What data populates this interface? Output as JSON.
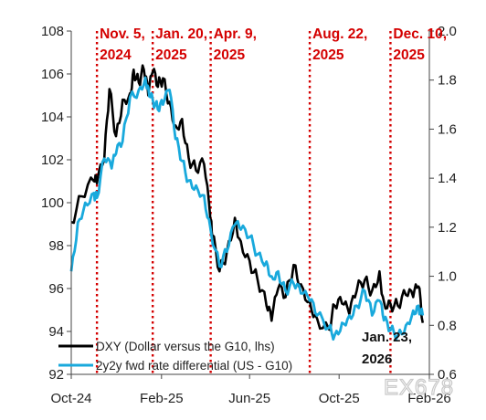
{
  "chart_data": {
    "type": "line",
    "title": "",
    "xlabel": "",
    "ylabel": "",
    "x_ticks": [
      "Oct-24",
      "Feb-25",
      "Jun-25",
      "Oct-25",
      "Feb-26"
    ],
    "x_range": [
      "2024-10-01",
      "2026-02-01"
    ],
    "y_left": {
      "range": [
        92,
        108
      ],
      "ticks": [
        "92",
        "94",
        "96",
        "98",
        "100",
        "102",
        "104",
        "106",
        "108"
      ]
    },
    "y_right": {
      "range": [
        0.6,
        2.0
      ],
      "ticks": [
        "0.6",
        "0.8",
        "1.0",
        "1.2",
        "1.4",
        "1.6",
        "1.8",
        "2.0"
      ]
    },
    "grid": false,
    "legend_placement": "bottom-left",
    "series": [
      {
        "name": "DXY (Dollar versus the G10, lhs)",
        "axis": "left",
        "color": "#000000",
        "points": [
          [
            "2024-10-01",
            99.1
          ],
          [
            "2024-10-15",
            100.3
          ],
          [
            "2024-11-01",
            101.0
          ],
          [
            "2024-11-05",
            100.9
          ],
          [
            "2024-11-15",
            102.0
          ],
          [
            "2024-11-22",
            105.3
          ],
          [
            "2024-12-01",
            103.1
          ],
          [
            "2024-12-10",
            104.8
          ],
          [
            "2024-12-20",
            105.1
          ],
          [
            "2024-12-25",
            106.2
          ],
          [
            "2025-01-01",
            105.6
          ],
          [
            "2025-01-08",
            106.2
          ],
          [
            "2025-01-14",
            105.0
          ],
          [
            "2025-01-20",
            106.1
          ],
          [
            "2025-01-27",
            105.4
          ],
          [
            "2025-02-03",
            105.8
          ],
          [
            "2025-02-12",
            104.7
          ],
          [
            "2025-02-20",
            103.6
          ],
          [
            "2025-03-01",
            103.9
          ],
          [
            "2025-03-10",
            102.1
          ],
          [
            "2025-03-20",
            101.5
          ],
          [
            "2025-03-31",
            101.8
          ],
          [
            "2025-04-09",
            99.1
          ],
          [
            "2025-04-11",
            98.5
          ],
          [
            "2025-04-21",
            96.8
          ],
          [
            "2025-05-01",
            97.7
          ],
          [
            "2025-05-12",
            99.3
          ],
          [
            "2025-05-20",
            98.2
          ],
          [
            "2025-06-01",
            97.3
          ],
          [
            "2025-06-12",
            96.4
          ],
          [
            "2025-06-24",
            95.2
          ],
          [
            "2025-07-01",
            94.5
          ],
          [
            "2025-07-10",
            96.0
          ],
          [
            "2025-07-20",
            95.6
          ],
          [
            "2025-07-31",
            97.1
          ],
          [
            "2025-08-10",
            96.2
          ],
          [
            "2025-08-22",
            95.4
          ],
          [
            "2025-09-01",
            94.6
          ],
          [
            "2025-09-17",
            94.1
          ],
          [
            "2025-09-25",
            95.2
          ],
          [
            "2025-10-05",
            95.3
          ],
          [
            "2025-10-15",
            94.8
          ],
          [
            "2025-10-25",
            95.9
          ],
          [
            "2025-11-05",
            96.4
          ],
          [
            "2025-11-15",
            95.9
          ],
          [
            "2025-11-25",
            96.8
          ],
          [
            "2025-12-01",
            95.4
          ],
          [
            "2025-12-10",
            95.3
          ],
          [
            "2025-12-20",
            95.2
          ],
          [
            "2025-12-31",
            95.7
          ],
          [
            "2026-01-10",
            95.6
          ],
          [
            "2026-01-17",
            96.1
          ],
          [
            "2026-01-23",
            94.4
          ]
        ]
      },
      {
        "name": "2y2y fwd rate differential (US - G10)",
        "axis": "right",
        "color": "#19a9dc",
        "points": [
          [
            "2024-10-01",
            1.02
          ],
          [
            "2024-10-10",
            1.22
          ],
          [
            "2024-10-20",
            1.3
          ],
          [
            "2024-11-01",
            1.34
          ],
          [
            "2024-11-05",
            1.32
          ],
          [
            "2024-11-15",
            1.48
          ],
          [
            "2024-11-25",
            1.44
          ],
          [
            "2024-12-01",
            1.5
          ],
          [
            "2024-12-10",
            1.55
          ],
          [
            "2024-12-20",
            1.73
          ],
          [
            "2025-01-01",
            1.76
          ],
          [
            "2025-01-10",
            1.81
          ],
          [
            "2025-01-14",
            1.77
          ],
          [
            "2025-01-20",
            1.72
          ],
          [
            "2025-01-27",
            1.68
          ],
          [
            "2025-02-03",
            1.7
          ],
          [
            "2025-02-12",
            1.76
          ],
          [
            "2025-02-20",
            1.56
          ],
          [
            "2025-03-01",
            1.47
          ],
          [
            "2025-03-10",
            1.39
          ],
          [
            "2025-03-20",
            1.37
          ],
          [
            "2025-03-31",
            1.33
          ],
          [
            "2025-04-09",
            1.19
          ],
          [
            "2025-04-21",
            1.04
          ],
          [
            "2025-05-01",
            1.1
          ],
          [
            "2025-05-12",
            1.21
          ],
          [
            "2025-05-20",
            1.19
          ],
          [
            "2025-06-01",
            1.16
          ],
          [
            "2025-06-12",
            1.09
          ],
          [
            "2025-06-24",
            1.06
          ],
          [
            "2025-07-01",
            1.0
          ],
          [
            "2025-07-10",
            1.02
          ],
          [
            "2025-07-20",
            0.94
          ],
          [
            "2025-07-31",
            0.97
          ],
          [
            "2025-08-10",
            0.93
          ],
          [
            "2025-08-22",
            0.9
          ],
          [
            "2025-09-01",
            0.84
          ],
          [
            "2025-09-17",
            0.79
          ],
          [
            "2025-09-25",
            0.76
          ],
          [
            "2025-10-05",
            0.81
          ],
          [
            "2025-10-15",
            0.84
          ],
          [
            "2025-10-25",
            0.88
          ],
          [
            "2025-11-05",
            0.94
          ],
          [
            "2025-11-15",
            0.84
          ],
          [
            "2025-11-25",
            0.9
          ],
          [
            "2025-12-01",
            0.82
          ],
          [
            "2025-12-10",
            0.78
          ],
          [
            "2025-12-20",
            0.76
          ],
          [
            "2025-12-31",
            0.8
          ],
          [
            "2026-01-10",
            0.86
          ],
          [
            "2026-01-17",
            0.88
          ],
          [
            "2026-01-23",
            0.84
          ]
        ]
      }
    ],
    "events": [
      {
        "date": "2024-11-05",
        "label_lines": [
          "Nov. 5,",
          "2024"
        ]
      },
      {
        "date": "2025-01-20",
        "label_lines": [
          "Jan. 20,",
          "2025"
        ]
      },
      {
        "date": "2025-04-09",
        "label_lines": [
          "Apr. 9,",
          "2025"
        ]
      },
      {
        "date": "2025-08-22",
        "label_lines": [
          "Aug. 22,",
          "2025"
        ]
      },
      {
        "date": "2025-12-10",
        "label_lines": [
          "Dec. 10,",
          "2025"
        ]
      }
    ],
    "end_annotation": [
      "Jan. 23,",
      "2026"
    ],
    "event_color": "#d40000"
  },
  "watermark": "EX678"
}
